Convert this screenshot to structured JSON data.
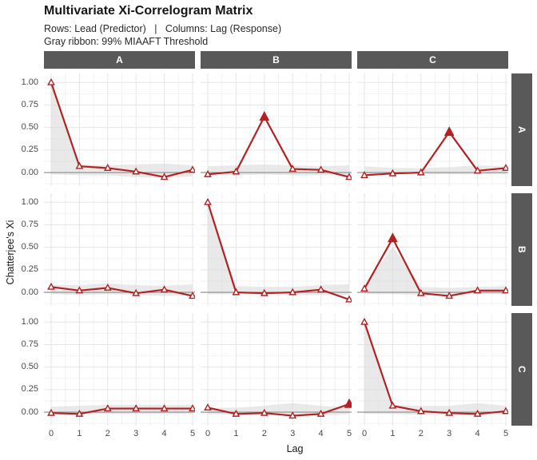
{
  "header": {
    "title": "Multivariate Xi-Correlogram Matrix",
    "subtitle_line1": "Rows: Lead (Predictor)   |   Columns: Lag (Response)",
    "subtitle_line2": "Gray ribbon: 99% MIAAFT Threshold"
  },
  "axes": {
    "x_title": "Lag",
    "y_title": "Chatterjee's Xi",
    "x_tick_labels": [
      "0",
      "1",
      "2",
      "3",
      "4",
      "5"
    ],
    "y_tick_labels": [
      "1.00",
      "0.75",
      "0.50",
      "0.25",
      "0.00"
    ],
    "y_tick_values": [
      1.0,
      0.75,
      0.5,
      0.25,
      0.0
    ]
  },
  "facets": {
    "col_labels": [
      "A",
      "B",
      "C"
    ],
    "row_labels": [
      "A",
      "B",
      "C"
    ]
  },
  "colors": {
    "line": "#B22222",
    "marker_open_fill": "#FFFFFF",
    "strip_bg": "#595959",
    "strip_text": "#FFFFFF",
    "ribbon": "#DADADA",
    "zero_line": "#8A8A8A",
    "grid_major": "#E6E6E6",
    "grid_minor": "#F2F2F2",
    "tick_text": "#4A4A4A"
  },
  "chart_data": {
    "type": "line",
    "title": "Multivariate Xi-Correlogram Matrix",
    "xlabel": "Lag",
    "ylabel": "Chatterjee's Xi",
    "x": [
      0,
      1,
      2,
      3,
      4,
      5
    ],
    "ylim": [
      -0.15,
      1.1
    ],
    "grid": true,
    "y_major_gridlines": [
      1.0,
      0.75,
      0.5,
      0.25,
      0.0
    ],
    "y_minor_gridlines": [
      0.875,
      0.625,
      0.375,
      0.125,
      -0.125
    ],
    "panels": [
      {
        "row": "A",
        "col": "A",
        "values": [
          1.0,
          0.07,
          0.05,
          0.01,
          -0.05,
          0.03
        ],
        "significant_lags": [],
        "ribbon_upper": [
          1.0,
          0.09,
          0.08,
          0.09,
          0.1,
          0.08
        ],
        "ribbon_lower": [
          -0.02,
          -0.03,
          -0.03,
          -0.05,
          -0.06,
          -0.04
        ]
      },
      {
        "row": "A",
        "col": "B",
        "values": [
          -0.02,
          0.01,
          0.62,
          0.04,
          0.03,
          -0.05
        ],
        "significant_lags": [
          2
        ],
        "ribbon_upper": [
          0.07,
          0.08,
          0.09,
          0.08,
          0.07,
          0.08
        ],
        "ribbon_lower": [
          -0.03,
          -0.03,
          -0.02,
          -0.03,
          -0.03,
          -0.03
        ]
      },
      {
        "row": "A",
        "col": "C",
        "values": [
          -0.03,
          -0.01,
          0.0,
          0.45,
          0.02,
          0.05
        ],
        "significant_lags": [
          3
        ],
        "ribbon_upper": [
          0.07,
          0.05,
          0.05,
          0.06,
          0.08,
          0.07
        ],
        "ribbon_lower": [
          -0.02,
          -0.02,
          -0.02,
          -0.02,
          -0.02,
          -0.02
        ]
      },
      {
        "row": "B",
        "col": "A",
        "values": [
          0.06,
          0.02,
          0.05,
          -0.01,
          0.03,
          -0.04
        ],
        "significant_lags": [],
        "ribbon_upper": [
          0.08,
          0.08,
          0.1,
          0.08,
          0.07,
          0.09
        ],
        "ribbon_lower": [
          -0.02,
          -0.03,
          -0.02,
          -0.03,
          -0.04,
          -0.03
        ]
      },
      {
        "row": "B",
        "col": "B",
        "values": [
          1.0,
          0.0,
          -0.01,
          0.0,
          0.03,
          -0.08
        ],
        "significant_lags": [],
        "ribbon_upper": [
          1.0,
          0.07,
          0.06,
          0.06,
          0.08,
          0.09
        ],
        "ribbon_lower": [
          -0.02,
          -0.02,
          -0.03,
          -0.03,
          -0.03,
          -0.03
        ]
      },
      {
        "row": "B",
        "col": "C",
        "values": [
          0.04,
          0.6,
          -0.01,
          -0.04,
          0.02,
          0.02
        ],
        "significant_lags": [
          1
        ],
        "ribbon_upper": [
          0.05,
          0.51,
          0.06,
          0.05,
          0.06,
          0.07
        ],
        "ribbon_lower": [
          -0.02,
          -0.02,
          -0.03,
          -0.03,
          -0.02,
          -0.02
        ]
      },
      {
        "row": "C",
        "col": "A",
        "values": [
          -0.01,
          -0.02,
          0.04,
          0.04,
          0.04,
          0.04
        ],
        "significant_lags": [],
        "ribbon_upper": [
          0.06,
          0.07,
          0.08,
          0.08,
          0.08,
          0.08
        ],
        "ribbon_lower": [
          -0.02,
          -0.02,
          -0.02,
          -0.02,
          -0.02,
          -0.02
        ]
      },
      {
        "row": "C",
        "col": "B",
        "values": [
          0.05,
          -0.02,
          -0.01,
          -0.04,
          -0.02,
          0.09
        ],
        "significant_lags": [
          5
        ],
        "ribbon_upper": [
          0.05,
          0.05,
          0.07,
          0.1,
          0.07,
          0.05
        ],
        "ribbon_lower": [
          -0.02,
          -0.03,
          -0.03,
          -0.04,
          -0.04,
          -0.02
        ]
      },
      {
        "row": "C",
        "col": "C",
        "values": [
          1.0,
          0.07,
          0.01,
          -0.01,
          -0.02,
          0.01
        ],
        "significant_lags": [],
        "ribbon_upper": [
          1.0,
          0.08,
          0.07,
          0.07,
          0.1,
          0.07
        ],
        "ribbon_lower": [
          -0.02,
          -0.02,
          -0.03,
          -0.03,
          -0.04,
          -0.02
        ]
      }
    ]
  }
}
